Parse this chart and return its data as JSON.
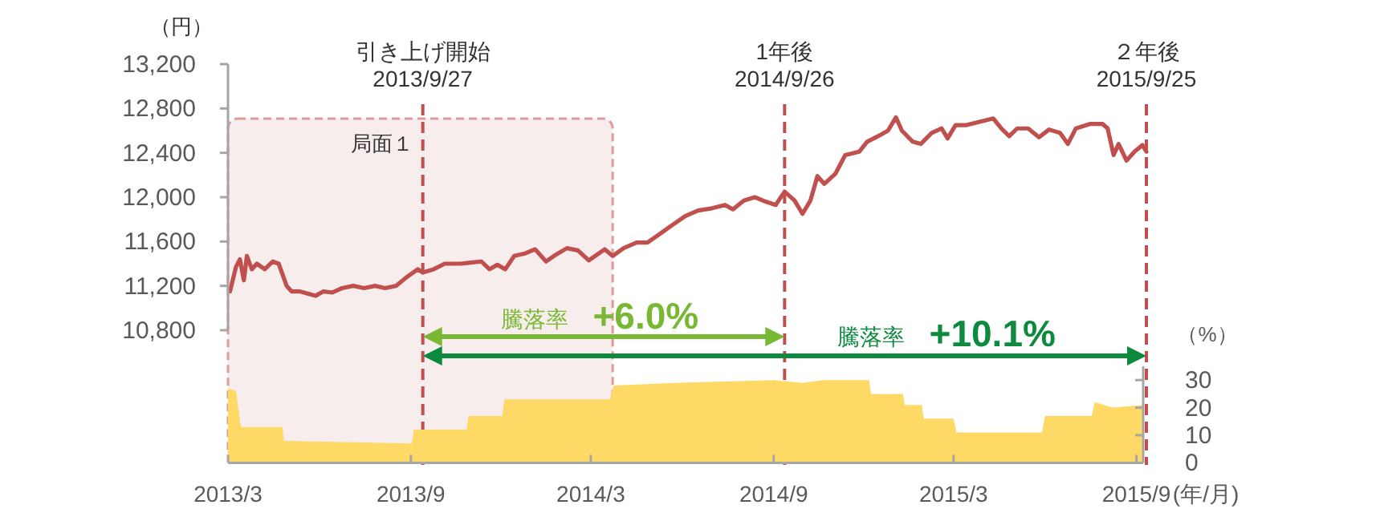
{
  "chart_data": [
    {
      "type": "line",
      "ylabel": "（円）",
      "xlim": [
        "2013-03-15",
        "2015-09-25"
      ],
      "ylim": [
        10800,
        13200
      ],
      "yticks": [
        {
          "value": 10800,
          "label": "10,800"
        },
        {
          "value": 11200,
          "label": "11,200"
        },
        {
          "value": 11600,
          "label": "11,600"
        },
        {
          "value": 12000,
          "label": "12,000"
        },
        {
          "value": 12400,
          "label": "12,400"
        },
        {
          "value": 12800,
          "label": "12,800"
        },
        {
          "value": 13200,
          "label": "13,200"
        }
      ],
      "tick_labels": "y",
      "series": [
        {
          "color": "#c0504d",
          "x": [
            "2013-03-17",
            "2013-03-23",
            "2013-03-27",
            "2013-03-31",
            "2013-04-03",
            "2013-04-08",
            "2013-04-13",
            "2013-04-21",
            "2013-04-29",
            "2013-05-05",
            "2013-05-13",
            "2013-05-18",
            "2013-05-26",
            "2013-06-03",
            "2013-06-11",
            "2013-06-19",
            "2013-06-28",
            "2013-07-08",
            "2013-07-19",
            "2013-07-30",
            "2013-08-10",
            "2013-08-20",
            "2013-08-31",
            "2013-09-11",
            "2013-09-22",
            "2013-09-27",
            "2013-10-08",
            "2013-10-19",
            "2013-11-04",
            "2013-11-14",
            "2013-11-25",
            "2013-12-03",
            "2013-12-11",
            "2013-12-19",
            "2013-12-28",
            "2014-01-07",
            "2014-01-18",
            "2014-01-29",
            "2014-02-06",
            "2014-02-19",
            "2014-03-02",
            "2014-03-13",
            "2014-03-29",
            "2014-04-06",
            "2014-04-17",
            "2014-04-30",
            "2014-05-11",
            "2014-05-22",
            "2014-06-02",
            "2014-06-18",
            "2014-07-01",
            "2014-07-15",
            "2014-07-28",
            "2014-08-05",
            "2014-08-16",
            "2014-08-27",
            "2014-09-07",
            "2014-09-17",
            "2014-09-26",
            "2014-10-06",
            "2014-10-14",
            "2014-10-22",
            "2014-10-29",
            "2014-11-05",
            "2014-11-16",
            "2014-11-26",
            "2014-12-10",
            "2014-12-18",
            "2014-12-29",
            "2015-01-08",
            "2015-01-16",
            "2015-01-22",
            "2015-02-02",
            "2015-02-10",
            "2015-02-21",
            "2015-03-03",
            "2015-03-09",
            "2015-03-17",
            "2015-03-28",
            "2015-04-10",
            "2015-04-24",
            "2015-05-02",
            "2015-05-10",
            "2015-05-18",
            "2015-05-29",
            "2015-06-09",
            "2015-06-19",
            "2015-06-30",
            "2015-07-08",
            "2015-07-16",
            "2015-07-30",
            "2015-08-12",
            "2015-08-17",
            "2015-08-23",
            "2015-08-28",
            "2015-09-05",
            "2015-09-13",
            "2015-09-21",
            "2015-09-25"
          ],
          "values": [
            11150,
            11370,
            11440,
            11250,
            11470,
            11350,
            11400,
            11350,
            11420,
            11400,
            11200,
            11150,
            11150,
            11130,
            11110,
            11150,
            11140,
            11180,
            11200,
            11180,
            11200,
            11180,
            11200,
            11280,
            11350,
            11320,
            11350,
            11400,
            11400,
            11410,
            11420,
            11350,
            11390,
            11350,
            11470,
            11490,
            11530,
            11420,
            11470,
            11540,
            11520,
            11430,
            11530,
            11470,
            11540,
            11590,
            11590,
            11660,
            11730,
            11830,
            11880,
            11900,
            11930,
            11890,
            11970,
            12000,
            11960,
            11930,
            12050,
            11970,
            11850,
            11970,
            12190,
            12120,
            12210,
            12380,
            12410,
            12500,
            12550,
            12600,
            12720,
            12600,
            12500,
            12480,
            12580,
            12620,
            12530,
            12650,
            12650,
            12680,
            12710,
            12620,
            12550,
            12620,
            12620,
            12540,
            12610,
            12580,
            12480,
            12620,
            12660,
            12660,
            12620,
            12380,
            12480,
            12330,
            12410,
            12470,
            12410
          ]
        }
      ],
      "ref_lines": [
        {
          "axis": "x",
          "value": "2013-09-27",
          "label": "引き上げ開始\n2013/9/27",
          "color": "#c0504d",
          "line_style": "dashed"
        },
        {
          "axis": "x",
          "value": "2014-09-26",
          "label": "1年後\n2014/9/26",
          "color": "#c0504d",
          "line_style": "dashed"
        },
        {
          "axis": "x",
          "value": "2015-09-25",
          "label": "２年後\n2015/9/25",
          "color": "#c0504d",
          "line_style": "dashed"
        }
      ],
      "bands": [
        {
          "axis": "x",
          "from": "2013-03-15",
          "to": "2014-04-06",
          "label": "局面１",
          "color": "#f7eded"
        }
      ],
      "annotations": [
        "騰落率",
        "+6.0%",
        "騰落率",
        "+10.1%"
      ]
    },
    {
      "type": "area",
      "xlim": [
        "2013-03-15",
        "2015-09-25"
      ],
      "y2lim": [
        0,
        35
      ],
      "y2ticks": [
        0,
        10,
        20,
        30
      ],
      "y2label": "（%）",
      "xlabel": "(年/月)",
      "xticks": [
        {
          "value": "2013-03-15",
          "label": "2013/3"
        },
        {
          "value": "2013-09-15",
          "label": "2013/9"
        },
        {
          "value": "2014-03-15",
          "label": "2014/3"
        },
        {
          "value": "2014-09-15",
          "label": "2014/9"
        },
        {
          "value": "2015-03-15",
          "label": "2015/3"
        },
        {
          "value": "2015-09-15",
          "label": "2015/9"
        }
      ],
      "series": [
        {
          "color": "#ffd966",
          "axis": "y2",
          "x": [
            "2013-03-15",
            "2013-03-23",
            "2013-03-28",
            "2013-05-09",
            "2013-05-10",
            "2013-09-16",
            "2013-09-18",
            "2013-11-10",
            "2013-11-12",
            "2013-12-16",
            "2013-12-18",
            "2014-04-03",
            "2014-04-07",
            "2014-06-07",
            "2014-09-15",
            "2014-10-14",
            "2014-11-04",
            "2014-12-20",
            "2014-12-22",
            "2015-01-23",
            "2015-01-25",
            "2015-02-11",
            "2015-02-13",
            "2015-03-15",
            "2015-03-18",
            "2015-06-12",
            "2015-06-15",
            "2015-08-01",
            "2015-08-04",
            "2015-08-22",
            "2015-09-22"
          ],
          "values": [
            27,
            26,
            13,
            13,
            8,
            7,
            12,
            12,
            17,
            17,
            23,
            23,
            28,
            29,
            30,
            29,
            30,
            30,
            25,
            25,
            21,
            21,
            16,
            16,
            11,
            11,
            17,
            17,
            22,
            20,
            21
          ]
        }
      ]
    }
  ]
}
